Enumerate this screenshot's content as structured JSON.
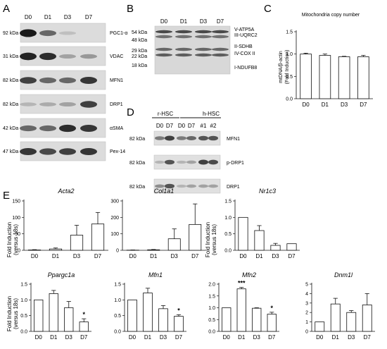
{
  "panels": {
    "A": {
      "letter": "A",
      "lanes": [
        "D0",
        "D1",
        "D3",
        "D7"
      ],
      "blots": [
        {
          "size": "92 kDa",
          "name": "PGC1-α",
          "bands": [
            1.0,
            0.6,
            0.15,
            0.0
          ]
        },
        {
          "size": "31 kDa",
          "name": "VDAC",
          "bands": [
            0.95,
            0.9,
            0.3,
            0.35
          ]
        },
        {
          "size": "82 kDa",
          "name": "MFN1",
          "bands": [
            0.8,
            0.6,
            0.6,
            0.85
          ]
        },
        {
          "size": "82 kDa",
          "name": "DRP1",
          "bands": [
            0.2,
            0.25,
            0.3,
            0.8
          ]
        },
        {
          "size": "42 kDa",
          "name": "αSMA",
          "bands": [
            0.6,
            0.6,
            0.9,
            0.85
          ]
        },
        {
          "size": "47 kDa",
          "name": "Pex-14",
          "bands": [
            0.85,
            0.75,
            0.8,
            0.85
          ]
        }
      ]
    },
    "B": {
      "letter": "B",
      "lanes": [
        "D0",
        "D1",
        "D3",
        "D7"
      ],
      "sizes": [
        "54 kDa",
        "48 kDa",
        "29 kDa",
        "22 kDa",
        "18 kDa"
      ],
      "proteins": [
        "V-ATP5A",
        "III-UQRC2",
        "II-SDHB",
        "IV-COX II",
        "I-NDUFB8"
      ]
    },
    "C": {
      "letter": "C",
      "title": "Mitochondria copy number",
      "ylabel": "mtDNA/β-actin",
      "ylabel2": "(Fold Induction)"
    },
    "D": {
      "letter": "D",
      "group1": "r-HSC",
      "group2": "h-HSC",
      "lanes": [
        "D0",
        "D7",
        "D0",
        "D7",
        "#1",
        "#2"
      ],
      "blots": [
        {
          "size": "82 kDa",
          "name": "MFN1",
          "bands": [
            0.5,
            0.8,
            0.5,
            0.6,
            0.7,
            0.7
          ]
        },
        {
          "size": "82 kDa",
          "name": "p-DRP1",
          "bands": [
            0.2,
            0.7,
            0.2,
            0.3,
            0.8,
            0.75
          ]
        },
        {
          "size": "82 kDa",
          "name": "DRP1",
          "bands": [
            0.4,
            0.7,
            0.2,
            0.3,
            0.3,
            0.3
          ]
        }
      ]
    },
    "E": {
      "letter": "E",
      "ylabel": "Fold Induction",
      "ylabel2": "(versus 18s)"
    }
  },
  "chart_data": [
    {
      "type": "bar",
      "panel": "C",
      "title": "Mitochondria copy number",
      "ylabel": "mtDNA/β-actin (Fold Induction)",
      "categories": [
        "D0",
        "D1",
        "D3",
        "D7"
      ],
      "values": [
        1.0,
        0.97,
        0.94,
        0.94
      ],
      "errors": [
        0.02,
        0.03,
        0.01,
        0.03
      ],
      "ylim": [
        0,
        1.5
      ],
      "yticks": [
        0.0,
        0.5,
        1.0,
        1.5
      ],
      "significance": [
        "",
        "",
        "",
        ""
      ]
    },
    {
      "type": "bar",
      "panel": "E",
      "title": "Acta2",
      "ylabel": "Fold Induction (versus 18s)",
      "categories": [
        "D0",
        "D1",
        "D3",
        "D7"
      ],
      "values": [
        1,
        4,
        46,
        80
      ],
      "errors": [
        1,
        3,
        30,
        35
      ],
      "ylim": [
        0,
        150
      ],
      "yticks": [
        0,
        50,
        100,
        150
      ],
      "significance": [
        "",
        "",
        "",
        ""
      ]
    },
    {
      "type": "bar",
      "panel": "E",
      "title": "Col1a1",
      "ylabel": "",
      "categories": [
        "D0",
        "D1",
        "D3",
        "D7"
      ],
      "values": [
        1,
        3,
        70,
        157
      ],
      "errors": [
        1,
        2,
        60,
        125
      ],
      "ylim": [
        0,
        300
      ],
      "yticks": [
        0,
        100,
        200,
        300
      ],
      "significance": [
        "",
        "",
        "",
        ""
      ]
    },
    {
      "type": "bar",
      "panel": "E",
      "title": "Nr1c3",
      "ylabel": "Fold Induction (versus 18s)",
      "categories": [
        "D0",
        "D1",
        "D3",
        "D7"
      ],
      "values": [
        1.0,
        0.6,
        0.15,
        0.2
      ],
      "errors": [
        0.0,
        0.15,
        0.06,
        0.0
      ],
      "ylim": [
        0,
        1.5
      ],
      "yticks": [
        0.0,
        0.5,
        1.0,
        1.5
      ],
      "significance": [
        "",
        "",
        "",
        ""
      ]
    },
    {
      "type": "bar",
      "panel": "E",
      "title": "Ppargc1a",
      "ylabel": "Fold Induction (versus 18s)",
      "categories": [
        "D0",
        "D1",
        "D3",
        "D7"
      ],
      "values": [
        1.0,
        1.2,
        0.75,
        0.3
      ],
      "errors": [
        0.0,
        0.1,
        0.2,
        0.1
      ],
      "ylim": [
        0,
        1.5
      ],
      "yticks": [
        0.0,
        0.5,
        1.0,
        1.5
      ],
      "significance": [
        "",
        "",
        "",
        "*"
      ]
    },
    {
      "type": "bar",
      "panel": "E",
      "title": "Mfn1",
      "ylabel": "",
      "categories": [
        "D0",
        "D1",
        "D3",
        "D7"
      ],
      "values": [
        1.0,
        1.22,
        0.72,
        0.48
      ],
      "errors": [
        0.0,
        0.15,
        0.1,
        0.05
      ],
      "ylim": [
        0,
        1.5
      ],
      "yticks": [
        0.0,
        0.5,
        1.0,
        1.5
      ],
      "significance": [
        "",
        "",
        "",
        "*"
      ]
    },
    {
      "type": "bar",
      "panel": "E",
      "title": "Mfn2",
      "ylabel": "",
      "categories": [
        "D0",
        "D1",
        "D3",
        "D7"
      ],
      "values": [
        1.0,
        1.8,
        0.98,
        0.73
      ],
      "errors": [
        0.0,
        0.06,
        0.02,
        0.08
      ],
      "ylim": [
        0,
        2.0
      ],
      "yticks": [
        0.0,
        0.5,
        1.0,
        1.5,
        2.0
      ],
      "significance": [
        "",
        "***",
        "",
        "*"
      ]
    },
    {
      "type": "bar",
      "panel": "E",
      "title": "Dnm1l",
      "ylabel": "",
      "categories": [
        "D0",
        "D1",
        "D3",
        "D7"
      ],
      "values": [
        1.0,
        2.9,
        2.0,
        2.8
      ],
      "errors": [
        0.0,
        0.6,
        0.2,
        1.2
      ],
      "ylim": [
        0,
        5
      ],
      "yticks": [
        0,
        1,
        2,
        3,
        4,
        5
      ],
      "significance": [
        "",
        "",
        "",
        ""
      ]
    }
  ]
}
